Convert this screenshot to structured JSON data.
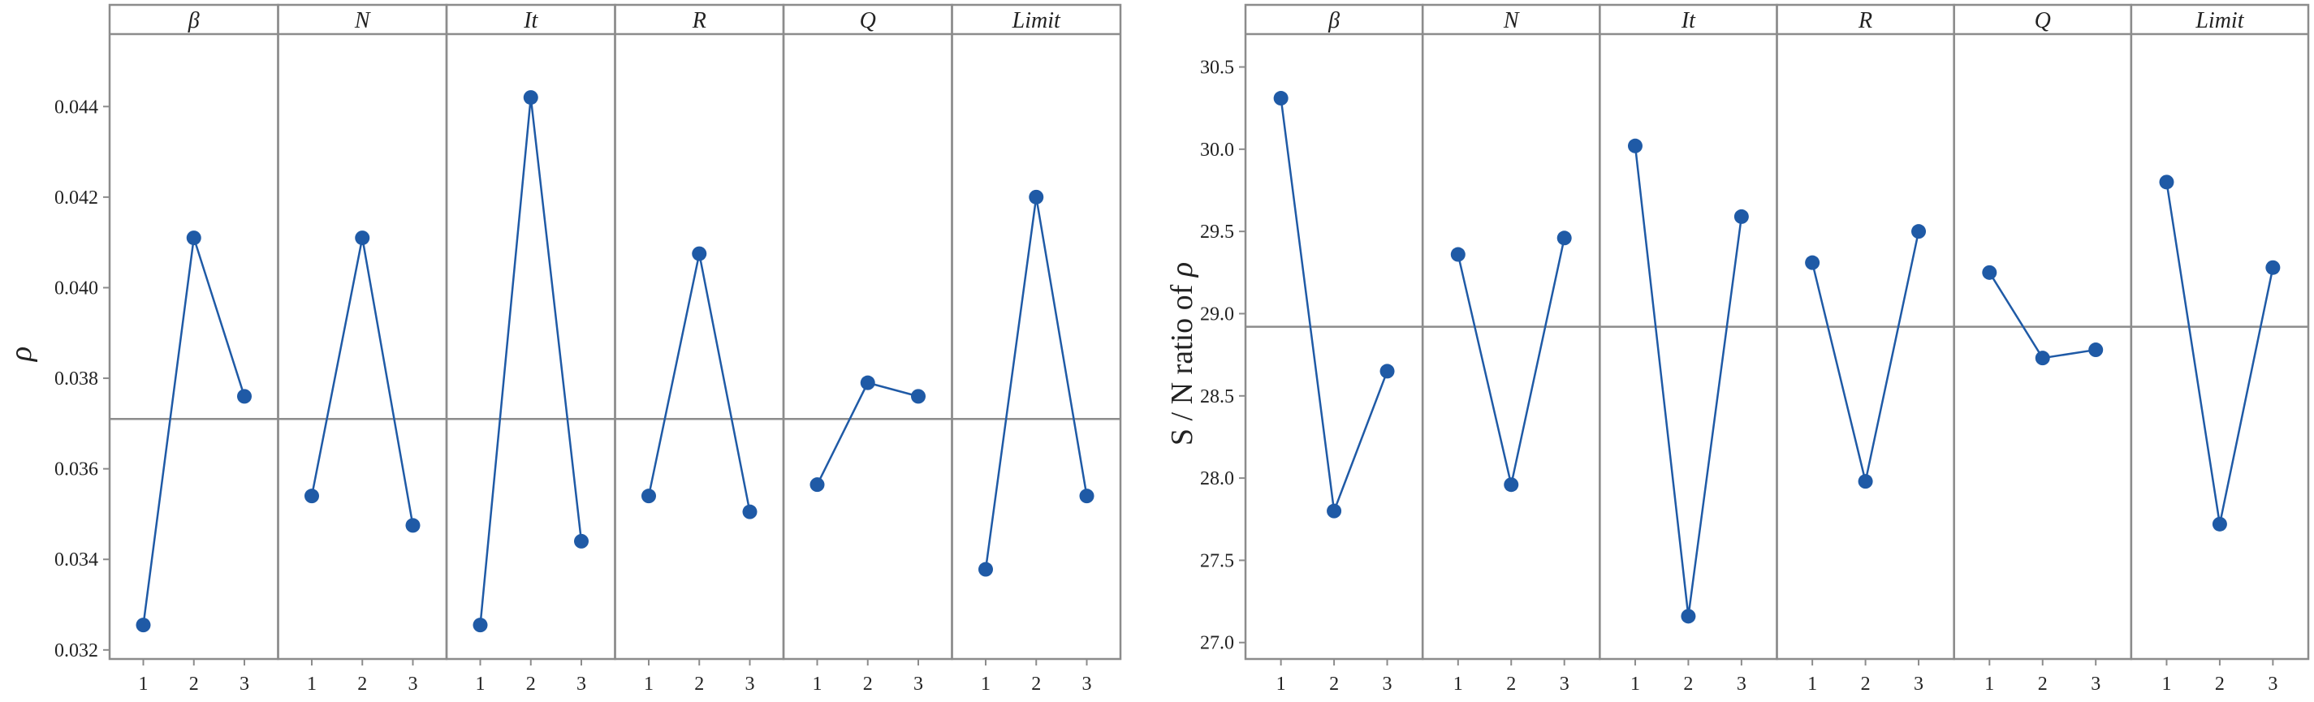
{
  "colors": {
    "series": "#1f5aa6",
    "frame": "#8c8c8c",
    "refline": "#8c8c8c",
    "text": "#222222",
    "background": "#ffffff"
  },
  "chart_data": [
    {
      "type": "line",
      "ylabel": "ρ",
      "ylim": [
        0.0318,
        0.0456
      ],
      "yticks": [
        0.032,
        0.034,
        0.036,
        0.038,
        0.04,
        0.042,
        0.044
      ],
      "ytick_labels": [
        "0.032",
        "0.034",
        "0.036",
        "0.038",
        "0.040",
        "0.042",
        "0.044"
      ],
      "reference_line": 0.0371,
      "x_levels": [
        "1",
        "2",
        "3"
      ],
      "panels": [
        {
          "label": "β",
          "values": [
            0.03255,
            0.0411,
            0.0376
          ]
        },
        {
          "label": "N",
          "values": [
            0.0354,
            0.0411,
            0.03475
          ]
        },
        {
          "label": "It",
          "values": [
            0.03255,
            0.0442,
            0.0344
          ]
        },
        {
          "label": "R",
          "values": [
            0.0354,
            0.04075,
            0.03505
          ]
        },
        {
          "label": "Q",
          "values": [
            0.03565,
            0.0379,
            0.0376
          ]
        },
        {
          "label": "Limit",
          "values": [
            0.03378,
            0.042,
            0.0354
          ]
        }
      ],
      "grid": false,
      "legend": "none"
    },
    {
      "type": "line",
      "ylabel_prefix": "S / N ratio of",
      "ylabel_symbol": "ρ",
      "ylim": [
        26.9,
        30.7
      ],
      "yticks": [
        27.0,
        27.5,
        28.0,
        28.5,
        29.0,
        29.5,
        30.0,
        30.5
      ],
      "ytick_labels": [
        "27.0",
        "27.5",
        "28.0",
        "28.5",
        "29.0",
        "29.5",
        "30.0",
        "30.5"
      ],
      "reference_line": 28.92,
      "x_levels": [
        "1",
        "2",
        "3"
      ],
      "panels": [
        {
          "label": "β",
          "values": [
            30.31,
            27.8,
            28.65
          ]
        },
        {
          "label": "N",
          "values": [
            29.36,
            27.96,
            29.46
          ]
        },
        {
          "label": "It",
          "values": [
            30.02,
            27.16,
            29.59
          ]
        },
        {
          "label": "R",
          "values": [
            29.31,
            27.98,
            29.5
          ]
        },
        {
          "label": "Q",
          "values": [
            29.25,
            28.73,
            28.78
          ]
        },
        {
          "label": "Limit",
          "values": [
            29.8,
            27.72,
            29.28
          ]
        }
      ],
      "grid": false,
      "legend": "none"
    }
  ]
}
